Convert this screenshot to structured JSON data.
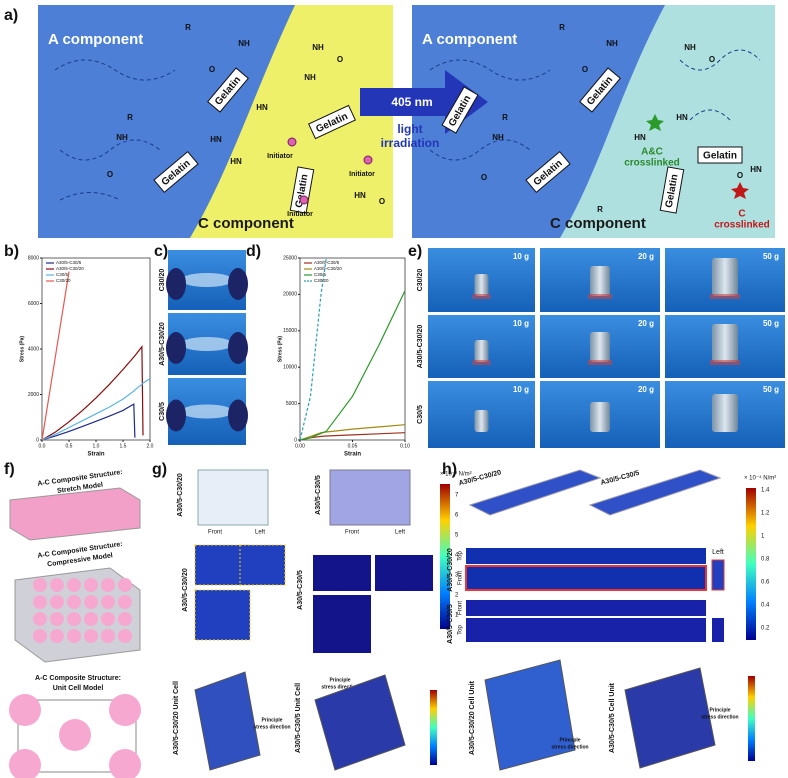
{
  "panel_a": {
    "label": "a)",
    "a_component": "A component",
    "c_component": "C component",
    "gelatin": "Gelatin",
    "initiator": "Initiator",
    "chem": {
      "nh": "NH",
      "hn": "HN",
      "o": "O",
      "r": "R"
    },
    "wavelength": "405 nm",
    "irradiation": [
      "light",
      "irradiation"
    ],
    "ac_crosslinked": [
      "A&C",
      "crosslinked"
    ],
    "c_crosslinked": [
      "C",
      "crosslinked"
    ]
  },
  "chart_data": [
    {
      "type": "line",
      "label": "b)",
      "xlabel": "Strain",
      "ylabel": "Stress (Pa)",
      "x": [
        0,
        0.25,
        0.5,
        0.75,
        1.0,
        1.25,
        1.5,
        1.7,
        1.72,
        1.85,
        1.87,
        2.0
      ],
      "xlim": [
        0,
        2.0
      ],
      "ylim": [
        0,
        8000
      ],
      "xticks": [
        {
          "value": 0,
          "label": "0.0"
        },
        {
          "value": 0.5,
          "label": "0.5"
        },
        {
          "value": 1,
          "label": "1.0"
        },
        {
          "value": 1.5,
          "label": "1.5"
        },
        {
          "value": 2,
          "label": "2.0"
        }
      ],
      "yticks": [
        0,
        2000,
        4000,
        6000,
        8000
      ],
      "legend": "upper left",
      "series": [
        {
          "name": "A30/5-C30/5",
          "color": "#1f2a8c",
          "values": [
            0,
            180,
            380,
            600,
            820,
            1050,
            1300,
            1580,
            100,
            null,
            null,
            null
          ]
        },
        {
          "name": "A30/5-C30/20",
          "color": "#8b0a0a",
          "values": [
            0,
            350,
            800,
            1300,
            1850,
            2450,
            3100,
            3650,
            3700,
            4100,
            200,
            null
          ]
        },
        {
          "name": "C30/5",
          "color": "#5ab4e6",
          "values": [
            0,
            250,
            550,
            850,
            1150,
            1450,
            1800,
            2150,
            2200,
            2450,
            2500,
            2700
          ]
        },
        {
          "name": "C30/20",
          "color": "#e8574f",
          "values": [
            0,
            3700,
            7400,
            null,
            null,
            null,
            null,
            null,
            null,
            null,
            null,
            null
          ]
        }
      ]
    },
    {
      "type": "line",
      "label": "d)",
      "xlabel": "Strain",
      "ylabel": "Stress (Pa)",
      "x": [
        0,
        0.01,
        0.02,
        0.025,
        0.05,
        0.075,
        0.1
      ],
      "xlim": [
        0,
        0.1
      ],
      "ylim": [
        0,
        25000
      ],
      "xticks": [
        {
          "value": 0,
          "label": "0.00"
        },
        {
          "value": 0.05,
          "label": "0.05"
        },
        {
          "value": 0.1,
          "label": "0.10"
        }
      ],
      "yticks": [
        0,
        5000,
        10000,
        15000,
        20000,
        25000
      ],
      "legend": "upper left",
      "series": [
        {
          "name": "A30/5-C30/5",
          "color": "#a0301e",
          "values": [
            0,
            300,
            500,
            550,
            700,
            850,
            1000
          ]
        },
        {
          "name": "A30/5-C30/20",
          "color": "#a08a10",
          "values": [
            0,
            500,
            1000,
            1100,
            1500,
            1800,
            2100
          ]
        },
        {
          "name": "C30/5",
          "color": "#2a9a2a",
          "values": [
            0,
            300,
            900,
            1200,
            6000,
            13000,
            20500
          ]
        },
        {
          "name": "C30/20",
          "color": "#2aa0b0",
          "dashed": true,
          "values": [
            0,
            6000,
            20000,
            25000,
            null,
            null,
            null
          ]
        }
      ]
    }
  ],
  "panel_c": {
    "label": "c)",
    "rows": [
      "C30/20",
      "A30/5-C30/20",
      "C30/5"
    ]
  },
  "panel_e": {
    "label": "e)",
    "rows": [
      "C30/20",
      "A30/5-C30/20",
      "C30/5"
    ],
    "weights": [
      "10 g",
      "20 g",
      "50 g"
    ]
  },
  "panel_f": {
    "label": "f)",
    "stretch": [
      "A-C Composite Structure:",
      "Stretch Model"
    ],
    "compressive": [
      "A-C Composite Structure:",
      "Compressive Model"
    ],
    "unit_cell": [
      "A-C Composite Structure:",
      "Unit Cell Model"
    ]
  },
  "panel_g": {
    "label": "g)",
    "sample_1": "A30/5-C30/20",
    "sample_2": "A30/5-C30/5",
    "front": "Front",
    "left": "Left",
    "unit": "× 10⁻³ N/m²",
    "colorbar": [
      7,
      6,
      5,
      4,
      3,
      2,
      1
    ],
    "cell_1": "A30/5-C30/20 Unit Cell",
    "cell_2": "A30/5-C30/5 Unit Cell",
    "stress": [
      "Principle",
      "stress direction"
    ]
  },
  "panel_h": {
    "label": "h)",
    "sample_1": "A30/5-C30/20",
    "sample_2": "A30/5-C30/5",
    "top": "Top",
    "front": "Front",
    "left": "Left",
    "unit": "× 10⁻⁴ N/m²",
    "colorbar": [
      1.4,
      1.2,
      1,
      0.8,
      0.6,
      0.4,
      0.2
    ],
    "cell_1": "A30/5-C30/20 Cell Unit",
    "cell_2": "A30/5-C30/5 Cell Unit",
    "stress": [
      "Principle",
      "stress direction"
    ]
  }
}
